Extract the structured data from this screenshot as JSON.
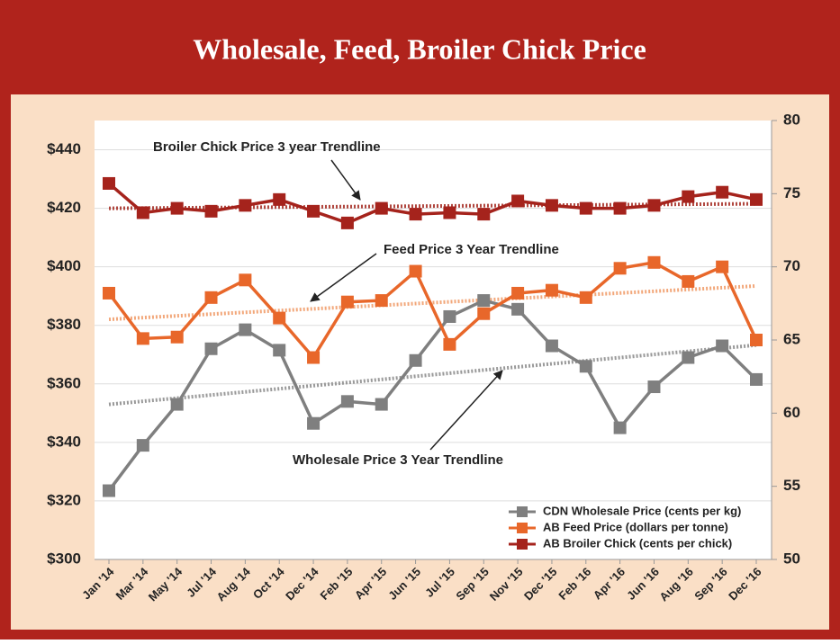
{
  "chart_data": {
    "type": "line",
    "title": "Wholesale, Feed, Broiler Chick Price",
    "categories": [
      "Jan '14",
      "Mar '14",
      "May '14",
      "Jul '14",
      "Aug '14",
      "Oct '14",
      "Dec '14",
      "Feb '15",
      "Apr '15",
      "Jun '15",
      "Jul '15",
      "Sep '15",
      "Nov '15",
      "Dec '15",
      "Feb '16",
      "Apr '16",
      "Jun '16",
      "Aug '16",
      "Sep '16",
      "Dec '16"
    ],
    "series": [
      {
        "name": "CDN Wholesale Price (cents per kg)",
        "color": "#7f7f7f",
        "values": [
          323.5,
          339,
          353,
          372,
          378.5,
          371.5,
          346.5,
          354,
          353,
          368,
          383,
          388.5,
          385.5,
          373,
          366,
          345,
          359,
          369,
          373,
          361.5
        ]
      },
      {
        "name": "AB Feed Price (dollars per tonne)",
        "color": "#e8672a",
        "values": [
          391,
          375.5,
          376,
          389.5,
          395.5,
          382.5,
          369,
          388,
          388.5,
          398.5,
          373.5,
          384,
          391,
          392,
          389.5,
          399.5,
          401.5,
          395,
          400,
          375
        ]
      },
      {
        "name": "AB Broiler Chick (cents per chick)",
        "color": "#a5231c",
        "axis": "y2",
        "values": [
          75.7,
          73.7,
          74,
          73.8,
          74.2,
          74.6,
          73.8,
          73,
          74,
          73.6,
          73.7,
          73.6,
          74.5,
          74.2,
          74,
          74,
          74.2,
          74.8,
          75.1,
          74.6
        ]
      }
    ],
    "ylim": [
      300,
      450
    ],
    "yticks": [
      {
        "value": 300,
        "label": "$300"
      },
      {
        "value": 320,
        "label": "$320"
      },
      {
        "value": 340,
        "label": "$340"
      },
      {
        "value": 360,
        "label": "$360"
      },
      {
        "value": 380,
        "label": "$380"
      },
      {
        "value": 400,
        "label": "$400"
      },
      {
        "value": 420,
        "label": "$420"
      },
      {
        "value": 440,
        "label": "$440"
      }
    ],
    "y2lim": [
      50,
      80
    ],
    "y2ticks": [
      50,
      55,
      60,
      65,
      70,
      75,
      80
    ],
    "grid": true,
    "legend": "lower right",
    "annotations": [
      "Broiler  Chick Price 3 year Trendline",
      "Feed Price 3 Year Trendline",
      "Wholesale Price 3 Year Trendline"
    ]
  }
}
